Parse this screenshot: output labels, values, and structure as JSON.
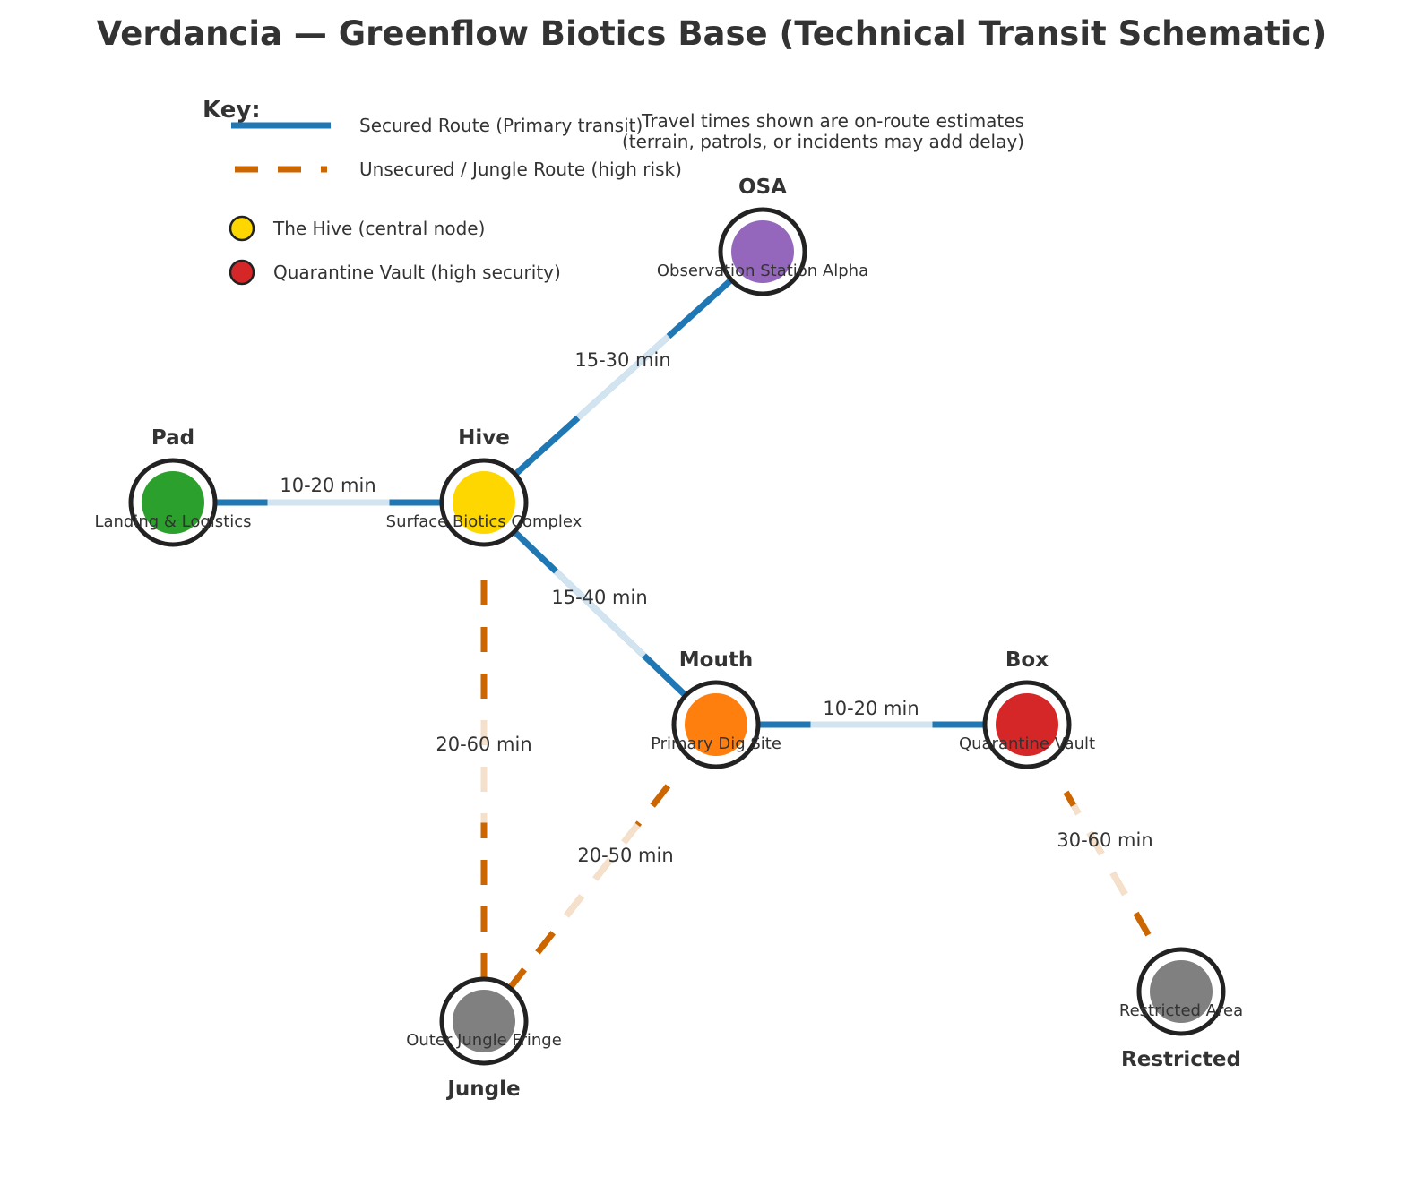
{
  "title": "Verdancia — Greenflow Biotics Base (Technical Transit Schematic)",
  "key": {
    "title": "Key:",
    "items": [
      {
        "label": "Secured Route (Primary transit)",
        "kind": "secured"
      },
      {
        "label": "Unsecured / Jungle Route (high risk)",
        "kind": "unsecured"
      },
      {
        "label": "The Hive (central node)",
        "kind": "marker",
        "color": "#FFD700"
      },
      {
        "label": "Quarantine Vault (high security)",
        "kind": "marker",
        "color": "#D62728"
      }
    ]
  },
  "note": {
    "line1": "Travel times shown are on-route estimates",
    "line2": "(terrain, patrols, or incidents may add delay)"
  },
  "colors": {
    "secured": "#1F77B4",
    "unsecured": "#CC6600",
    "node_ring": "#222222",
    "text": "#333333"
  },
  "nodes": [
    {
      "id": "pad",
      "short": "Pad",
      "full": "Landing & Logistics",
      "color": "#2CA02C"
    },
    {
      "id": "hive",
      "short": "Hive",
      "full": "Surface Biotics Complex",
      "color": "#FFD700"
    },
    {
      "id": "osa",
      "short": "OSA",
      "full": "Observation Station Alpha",
      "color": "#9467BD"
    },
    {
      "id": "mouth",
      "short": "Mouth",
      "full": "Primary Dig Site",
      "color": "#FF7F0E"
    },
    {
      "id": "box",
      "short": "Box",
      "full": "Quarantine Vault",
      "color": "#D62728"
    },
    {
      "id": "jungle",
      "short": "Jungle",
      "full": "Outer Jungle Fringe",
      "color": "#808080"
    },
    {
      "id": "restricted",
      "short": "Restricted",
      "full": "Restricted Area",
      "color": "#808080"
    }
  ],
  "edges": [
    {
      "from": "pad",
      "to": "hive",
      "type": "secured",
      "time": "10-20 min"
    },
    {
      "from": "hive",
      "to": "osa",
      "type": "secured",
      "time": "15-30 min"
    },
    {
      "from": "hive",
      "to": "mouth",
      "type": "secured",
      "time": "15-40 min"
    },
    {
      "from": "mouth",
      "to": "box",
      "type": "secured",
      "time": "10-20 min"
    },
    {
      "from": "hive",
      "to": "jungle",
      "type": "unsecured",
      "time": "20-60 min"
    },
    {
      "from": "mouth",
      "to": "jungle",
      "type": "unsecured",
      "time": "20-50 min"
    },
    {
      "from": "box",
      "to": "restricted",
      "type": "unsecured",
      "time": "30-60 min"
    }
  ]
}
